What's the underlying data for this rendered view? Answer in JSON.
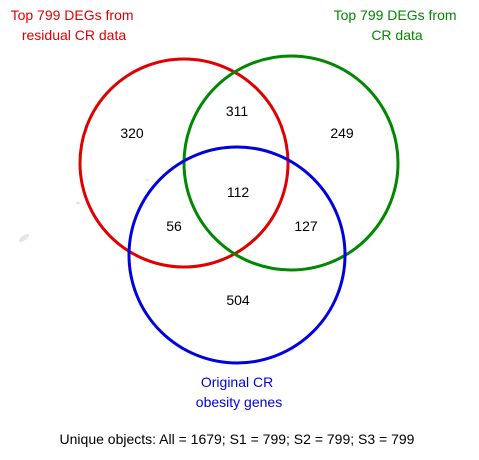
{
  "sets": [
    {
      "id": "S1",
      "label_lines": [
        "Top 799 DEGs from",
        "residual CR data"
      ],
      "color": "#e00000"
    },
    {
      "id": "S2",
      "label_lines": [
        "Top 799 DEGs from",
        "CR data"
      ],
      "color": "#008800"
    },
    {
      "id": "S3",
      "label_lines": [
        "Original CR",
        "obesity genes"
      ],
      "color": "#0000e0"
    }
  ],
  "regions": {
    "s1_only": "320",
    "s1_s2": "311",
    "s2_only": "249",
    "s1_s2_s3": "112",
    "s1_s3": "56",
    "s2_s3": "127",
    "s3_only": "504"
  },
  "summary": "Unique objects: All = 1679; S1 = 799; S2 = 799; S3 = 799"
}
